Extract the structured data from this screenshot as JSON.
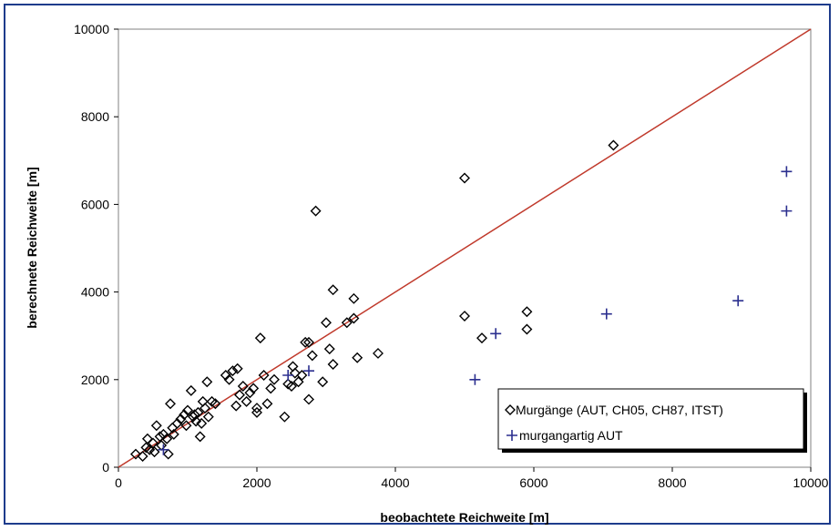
{
  "chart_data": {
    "type": "scatter",
    "xlabel": "beobachtete Reichweite [m]",
    "ylabel": "berechnete Reichweite [m]",
    "xlim": [
      0,
      10000
    ],
    "ylim": [
      0,
      10000
    ],
    "xticks": [
      "0",
      "2000",
      "4000",
      "6000",
      "8000",
      "10000"
    ],
    "yticks": [
      "0",
      "2000",
      "4000",
      "6000",
      "8000",
      "10000"
    ],
    "grid": false,
    "legend_position": "bottom-right",
    "reference_line": {
      "x": [
        0,
        10000
      ],
      "y": [
        0,
        10000
      ],
      "color": "#c0392b"
    },
    "series": [
      {
        "name": "Murgänge (AUT, CH05, CH87, ITST)",
        "marker": "diamond",
        "color": "#000000",
        "points": [
          [
            250,
            300
          ],
          [
            350,
            250
          ],
          [
            400,
            450
          ],
          [
            420,
            650
          ],
          [
            450,
            400
          ],
          [
            500,
            550
          ],
          [
            520,
            350
          ],
          [
            550,
            950
          ],
          [
            600,
            700
          ],
          [
            620,
            500
          ],
          [
            650,
            750
          ],
          [
            700,
            650
          ],
          [
            720,
            300
          ],
          [
            750,
            1450
          ],
          [
            780,
            900
          ],
          [
            800,
            750
          ],
          [
            850,
            1000
          ],
          [
            900,
            1100
          ],
          [
            950,
            1200
          ],
          [
            980,
            950
          ],
          [
            1000,
            1300
          ],
          [
            1050,
            1750
          ],
          [
            1080,
            1150
          ],
          [
            1100,
            1200
          ],
          [
            1120,
            1050
          ],
          [
            1150,
            1250
          ],
          [
            1180,
            700
          ],
          [
            1200,
            1000
          ],
          [
            1220,
            1500
          ],
          [
            1250,
            1350
          ],
          [
            1280,
            1950
          ],
          [
            1300,
            1150
          ],
          [
            1350,
            1500
          ],
          [
            1400,
            1450
          ],
          [
            1550,
            2100
          ],
          [
            1600,
            2000
          ],
          [
            1650,
            2200
          ],
          [
            1700,
            1400
          ],
          [
            1720,
            2250
          ],
          [
            1750,
            1650
          ],
          [
            1800,
            1850
          ],
          [
            1850,
            1500
          ],
          [
            1900,
            1700
          ],
          [
            1950,
            1800
          ],
          [
            2000,
            1350
          ],
          [
            2000,
            1250
          ],
          [
            2050,
            2950
          ],
          [
            2100,
            2100
          ],
          [
            2150,
            1450
          ],
          [
            2200,
            1800
          ],
          [
            2250,
            2000
          ],
          [
            2400,
            1150
          ],
          [
            2450,
            1900
          ],
          [
            2500,
            1850
          ],
          [
            2520,
            2300
          ],
          [
            2550,
            2150
          ],
          [
            2600,
            1950
          ],
          [
            2650,
            2100
          ],
          [
            2700,
            2850
          ],
          [
            2750,
            1550
          ],
          [
            2750,
            2850
          ],
          [
            2800,
            2550
          ],
          [
            2850,
            5850
          ],
          [
            2950,
            1950
          ],
          [
            3000,
            3300
          ],
          [
            3050,
            2700
          ],
          [
            3100,
            4050
          ],
          [
            3100,
            2350
          ],
          [
            3300,
            3300
          ],
          [
            3400,
            3400
          ],
          [
            3400,
            3850
          ],
          [
            3450,
            2500
          ],
          [
            3750,
            2600
          ],
          [
            5000,
            6600
          ],
          [
            5000,
            3450
          ],
          [
            5250,
            2950
          ],
          [
            5900,
            3550
          ],
          [
            5900,
            3150
          ],
          [
            7150,
            7350
          ]
        ]
      },
      {
        "name": "murgangartig AUT",
        "marker": "plus",
        "color": "#2b2f8f",
        "points": [
          [
            650,
            400
          ],
          [
            2450,
            2100
          ],
          [
            2750,
            2200
          ],
          [
            5150,
            2000
          ],
          [
            5450,
            3050
          ],
          [
            7050,
            3500
          ],
          [
            8950,
            3800
          ],
          [
            9650,
            6750
          ],
          [
            9650,
            5850
          ]
        ]
      }
    ]
  }
}
